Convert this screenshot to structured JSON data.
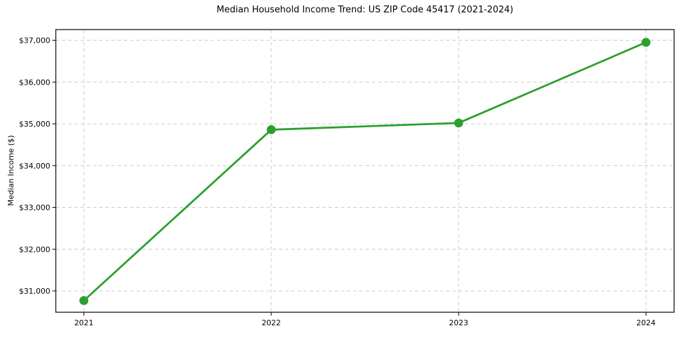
{
  "chart_data": {
    "type": "line",
    "title": "Median Household Income Trend: US ZIP Code 45417 (2021-2024)",
    "ylabel": "Median Income ($)",
    "xlabel": "",
    "x": [
      2021,
      2022,
      2023,
      2024
    ],
    "x_tick_labels": [
      "2021",
      "2022",
      "2023",
      "2024"
    ],
    "values": [
      30770,
      34860,
      35020,
      36950
    ],
    "y_ticks": [
      31000,
      32000,
      33000,
      34000,
      35000,
      36000,
      37000
    ],
    "y_tick_labels": [
      "$31,000",
      "$32,000",
      "$33,000",
      "$34,000",
      "$35,000",
      "$36,000",
      "$37,000"
    ],
    "ylim": [
      30490,
      37256
    ],
    "xlim": [
      2020.85,
      2024.15
    ],
    "grid": true,
    "grid_style": "dashed",
    "legend": false,
    "line_color": "#2ca02c",
    "marker_color": "#2ca02c",
    "grid_color": "#cccccc",
    "axis_color": "#000000",
    "tick_label_color": "#000000",
    "background_color": "#ffffff"
  }
}
